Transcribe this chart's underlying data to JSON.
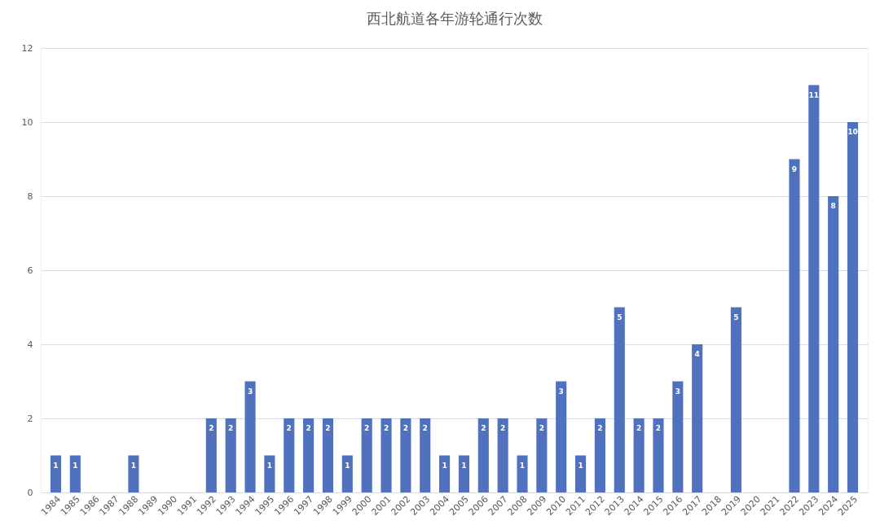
{
  "chart_data": {
    "type": "bar",
    "title": "西北航道各年游轮通行次数",
    "categories": [
      "1984",
      "1985",
      "1986",
      "1987",
      "1988",
      "1989",
      "1990",
      "1991",
      "1992",
      "1993",
      "1994",
      "1995",
      "1996",
      "1997",
      "1998",
      "1999",
      "2000",
      "2001",
      "2002",
      "2003",
      "2004",
      "2005",
      "2006",
      "2007",
      "2008",
      "2009",
      "2010",
      "2011",
      "2012",
      "2013",
      "2014",
      "2015",
      "2016",
      "2017",
      "2018",
      "2019",
      "2020",
      "2021",
      "2022",
      "2023",
      "2024",
      "2025"
    ],
    "values": [
      1,
      1,
      0,
      0,
      1,
      0,
      0,
      0,
      2,
      2,
      3,
      1,
      2,
      2,
      2,
      1,
      2,
      2,
      2,
      2,
      1,
      1,
      2,
      2,
      1,
      2,
      3,
      1,
      2,
      5,
      2,
      2,
      3,
      4,
      0,
      5,
      0,
      0,
      9,
      11,
      8,
      10
    ],
    "value_labels": [
      "1",
      "1",
      null,
      null,
      "1",
      null,
      null,
      null,
      "2",
      "2",
      "3",
      "1",
      "2",
      "2",
      "2",
      "1",
      "2",
      "2",
      "2",
      "2",
      "1",
      "1",
      "2",
      "2",
      "1",
      "2",
      "3",
      "1",
      "2",
      "5",
      "2",
      "2",
      "3",
      "4",
      null,
      "5",
      null,
      null,
      "9",
      "11",
      "8",
      "10"
    ],
    "color": "#4f71be",
    "ylim": [
      0,
      12
    ],
    "yticks": [
      0,
      2,
      4,
      6,
      8,
      10,
      12
    ],
    "grid": "y"
  }
}
